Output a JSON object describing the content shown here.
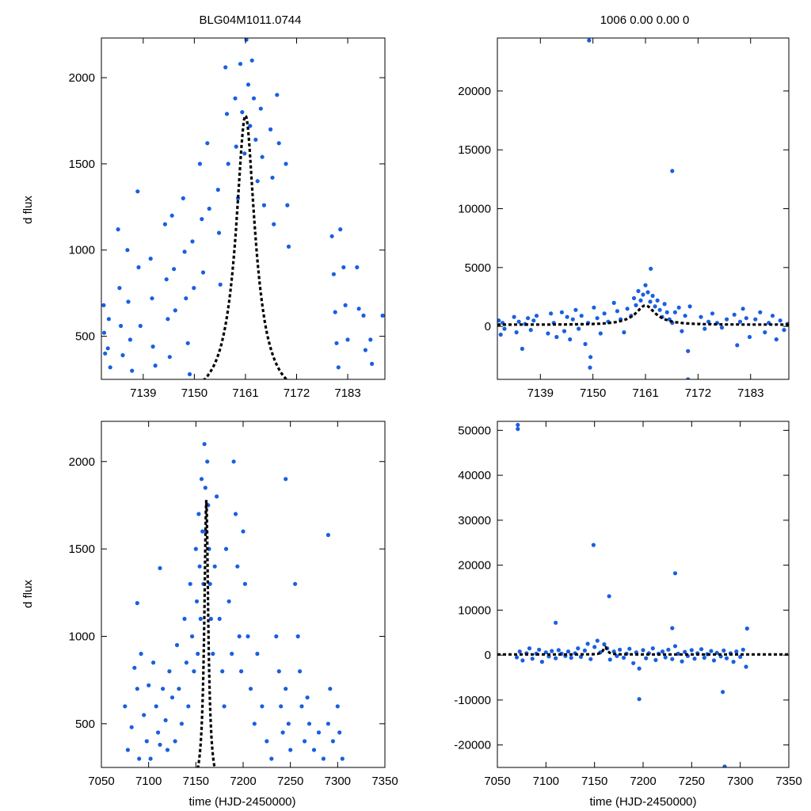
{
  "title_left": "BLG04M1011.0744",
  "title_right": "1006  0.00  0.00  0",
  "ylabel": "d flux",
  "xlabel": "time (HJD-2450000)",
  "colors": {
    "points": "#1a5fe0",
    "model": "#000000"
  },
  "chart_data": [
    {
      "type": "scatter",
      "panel": "top-left",
      "title": "BLG04M1011.0744",
      "ylabel": "d flux",
      "xlim": [
        7130,
        7191
      ],
      "ylim": [
        250,
        2230
      ],
      "xticks": [
        7139,
        7150,
        7161,
        7172,
        7183
      ],
      "yticks": [
        500,
        1000,
        1500,
        2000
      ],
      "model": {
        "t0": 7161,
        "peak": 1780,
        "baseline": 150,
        "tE": 6,
        "u0": 0.33
      },
      "series": [
        {
          "x": [
            7130.5,
            7130.6,
            7130.8,
            7131.4,
            7131.6,
            7131.9,
            7133.6,
            7133.9,
            7134.2,
            7134.6,
            7135.6,
            7135.8,
            7136.2,
            7136.6,
            7137.8,
            7138.0,
            7138.4,
            7140.6,
            7140.9,
            7141.1,
            7141.6,
            7143.7,
            7144.0,
            7144.3,
            7144.7,
            7145.2,
            7145.6,
            7145.9,
            7147.6,
            7147.9,
            7148.2,
            7148.6,
            7149.0,
            7149.6,
            7149.9,
            7151.2,
            7151.6,
            7151.9,
            7152.8,
            7153.2,
            7155.1,
            7155.3,
            7155.6,
            7156.7,
            7157.0,
            7157.3,
            7158.8,
            7159.0,
            7159.4,
            7159.9,
            7160.3,
            7160.8,
            7161.2,
            7161.6,
            7162.0,
            7162.4,
            7162.8,
            7163.2,
            7163.6,
            7164.3,
            7164.6,
            7165.0,
            7166.4,
            7166.8,
            7167.1,
            7167.8,
            7168.2,
            7169.7,
            7170.0,
            7170.3,
            7179.6,
            7180.0,
            7180.3,
            7180.6,
            7181.0,
            7181.4,
            7182.1,
            7182.5,
            7183.0,
            7185.0,
            7185.4,
            7186.4,
            7186.8,
            7187.9,
            7188.2,
            7190.5
          ],
          "y": [
            680,
            520,
            400,
            430,
            600,
            320,
            1120,
            780,
            560,
            390,
            1000,
            700,
            480,
            300,
            1340,
            900,
            560,
            950,
            720,
            440,
            330,
            1150,
            830,
            600,
            380,
            1200,
            890,
            650,
            1300,
            990,
            720,
            460,
            280,
            1050,
            780,
            1500,
            1180,
            870,
            1620,
            1240,
            1350,
            1100,
            800,
            2060,
            1790,
            1500,
            1880,
            1600,
            1300,
            2080,
            1800,
            1560,
            2220,
            1960,
            1720,
            2100,
            1880,
            1640,
            1400,
            1820,
            1540,
            1260,
            1700,
            1420,
            1150,
            1900,
            1620,
            1500,
            1260,
            1020,
            1080,
            860,
            640,
            460,
            320,
            1120,
            900,
            680,
            480,
            900,
            660,
            620,
            420,
            480,
            340,
            620
          ]
        }
      ]
    },
    {
      "type": "scatter",
      "panel": "top-right",
      "title": "1006  0.00  0.00  0",
      "xlim": [
        7130,
        7191
      ],
      "ylim": [
        -4500,
        24500
      ],
      "xticks": [
        7139,
        7150,
        7161,
        7172,
        7183
      ],
      "yticks": [
        0,
        5000,
        10000,
        15000,
        20000
      ],
      "model": {
        "t0": 7161,
        "peak": 1780,
        "baseline": 150,
        "tE": 6,
        "u0": 0.33
      },
      "series": [
        {
          "x": [
            7130.3,
            7130.7,
            7131.1,
            7131.5,
            7133.5,
            7134.0,
            7134.5,
            7135.2,
            7135.8,
            7136.4,
            7137.0,
            7137.6,
            7138.2,
            7140.6,
            7141.2,
            7141.8,
            7142.4,
            7143.5,
            7144.0,
            7144.6,
            7145.2,
            7145.8,
            7146.4,
            7147.0,
            7147.6,
            7148.4,
            7149.0,
            7149.5,
            7150.2,
            7150.9,
            7151.6,
            7152.4,
            7153.2,
            7154.4,
            7155.1,
            7155.8,
            7156.5,
            7157.2,
            7158.0,
            7158.6,
            7159.0,
            7159.5,
            7160.0,
            7160.5,
            7161.0,
            7161.5,
            7162.0,
            7162.5,
            7163.0,
            7163.5,
            7164.0,
            7164.5,
            7165.0,
            7165.5,
            7166.0,
            7166.6,
            7167.2,
            7168.0,
            7168.6,
            7169.3,
            7169.9,
            7170.3,
            7172.6,
            7173.4,
            7174.2,
            7175.0,
            7176.0,
            7177.0,
            7178.0,
            7179.6,
            7180.2,
            7180.8,
            7181.4,
            7182.1,
            7182.8,
            7184.0,
            7185.0,
            7186.0,
            7186.8,
            7187.6,
            7188.4,
            7189.2,
            7190.0,
            7190.7,
            7149.2,
            7166.6,
            7149.4,
            7162.1,
            7169.9
          ],
          "y": [
            500,
            -700,
            300,
            -200,
            800,
            -500,
            400,
            -1900,
            200,
            700,
            -300,
            500,
            900,
            -600,
            1100,
            300,
            -900,
            1200,
            -400,
            800,
            -1100,
            600,
            1400,
            -200,
            900,
            -1500,
            300,
            -2600,
            1600,
            700,
            -600,
            1100,
            400,
            2000,
            1300,
            600,
            -500,
            1500,
            900,
            2400,
            1800,
            3000,
            2200,
            2700,
            3500,
            2900,
            2100,
            2600,
            1700,
            2200,
            1400,
            800,
            1900,
            1200,
            600,
            300,
            1200,
            1600,
            -400,
            900,
            -2100,
            1700,
            800,
            -200,
            400,
            1100,
            300,
            -100,
            600,
            1000,
            -1600,
            400,
            1500,
            700,
            -900,
            600,
            1200,
            -500,
            300,
            900,
            -1100,
            500,
            -300,
            200,
            24300,
            13200,
            -3500,
            4900,
            -4500
          ]
        }
      ]
    },
    {
      "type": "scatter",
      "panel": "bottom-left",
      "ylabel": "d flux",
      "xlabel": "time (HJD-2450000)",
      "xlim": [
        7050,
        7350
      ],
      "ylim": [
        250,
        2230
      ],
      "xticks": [
        7050,
        7100,
        7150,
        7200,
        7250,
        7300,
        7350
      ],
      "yticks": [
        500,
        1000,
        1500,
        2000
      ],
      "model": {
        "t0": 7161,
        "peak": 1780,
        "baseline": 150,
        "tE": 6,
        "u0": 0.33
      },
      "series": [
        {
          "x": [
            7075,
            7078,
            7082,
            7085,
            7088,
            7090,
            7092,
            7095,
            7098,
            7100,
            7102,
            7105,
            7108,
            7110,
            7112,
            7115,
            7118,
            7120,
            7122,
            7125,
            7128,
            7130,
            7132,
            7135,
            7138,
            7140,
            7142,
            7144,
            7146,
            7148,
            7150,
            7151,
            7152,
            7153,
            7154,
            7155,
            7156,
            7157,
            7158,
            7159,
            7160,
            7161,
            7162,
            7163,
            7164,
            7165,
            7166,
            7168,
            7170,
            7172,
            7175,
            7178,
            7180,
            7182,
            7185,
            7188,
            7190,
            7192,
            7194,
            7196,
            7198,
            7200,
            7202,
            7205,
            7208,
            7212,
            7215,
            7220,
            7225,
            7230,
            7235,
            7238,
            7240,
            7242,
            7245,
            7248,
            7250,
            7255,
            7258,
            7260,
            7262,
            7265,
            7268,
            7270,
            7275,
            7280,
            7285,
            7290,
            7292,
            7295,
            7300,
            7302,
            7305,
            7088,
            7112,
            7245,
            7290
          ],
          "y": [
            600,
            350,
            480,
            820,
            700,
            300,
            900,
            550,
            400,
            720,
            300,
            850,
            600,
            450,
            380,
            700,
            520,
            350,
            800,
            650,
            400,
            950,
            700,
            500,
            1100,
            850,
            600,
            1300,
            1000,
            800,
            1500,
            1200,
            900,
            1700,
            1400,
            1100,
            1900,
            1600,
            1300,
            2100,
            1850,
            1600,
            2000,
            1750,
            1500,
            1300,
            1100,
            900,
            1400,
            1800,
            1100,
            800,
            600,
            1500,
            1200,
            900,
            2000,
            1700,
            1400,
            1000,
            800,
            1600,
            1300,
            1000,
            700,
            500,
            900,
            600,
            400,
            300,
            1000,
            800,
            600,
            450,
            700,
            500,
            350,
            1300,
            1000,
            800,
            600,
            400,
            650,
            500,
            350,
            450,
            300,
            500,
            700,
            400,
            600,
            450,
            300,
            1190,
            1390,
            1900,
            1580
          ]
        }
      ]
    },
    {
      "type": "scatter",
      "panel": "bottom-right",
      "xlabel": "time (HJD-2450000)",
      "xlim": [
        7050,
        7350
      ],
      "ylim": [
        -25000,
        52000
      ],
      "xticks": [
        7050,
        7100,
        7150,
        7200,
        7250,
        7300,
        7350
      ],
      "yticks": [
        -20000,
        -10000,
        0,
        10000,
        20000,
        30000,
        40000,
        50000
      ],
      "model": {
        "t0": 7161,
        "peak": 1780,
        "baseline": 150,
        "tE": 6,
        "u0": 0.33
      },
      "series": [
        {
          "x": [
            7070,
            7073,
            7076,
            7080,
            7083,
            7086,
            7090,
            7093,
            7096,
            7100,
            7103,
            7106,
            7110,
            7113,
            7116,
            7120,
            7123,
            7126,
            7130,
            7133,
            7136,
            7140,
            7143,
            7146,
            7150,
            7153,
            7156,
            7160,
            7163,
            7166,
            7170,
            7173,
            7176,
            7180,
            7183,
            7186,
            7190,
            7193,
            7196,
            7200,
            7203,
            7206,
            7210,
            7213,
            7216,
            7220,
            7223,
            7226,
            7230,
            7233,
            7236,
            7240,
            7243,
            7246,
            7250,
            7253,
            7256,
            7260,
            7263,
            7266,
            7270,
            7273,
            7276,
            7280,
            7283,
            7286,
            7290,
            7293,
            7296,
            7300,
            7303,
            7306,
            7071,
            7071,
            7149,
            7165,
            7110,
            7233,
            7230,
            7196,
            7282,
            7284,
            7307
          ],
          "y": [
            -500,
            800,
            -1200,
            400,
            1500,
            -800,
            300,
            1200,
            -1500,
            600,
            -300,
            900,
            -700,
            1100,
            300,
            -200,
            800,
            -600,
            400,
            1500,
            -400,
            1000,
            2500,
            -900,
            1800,
            3200,
            600,
            2400,
            1500,
            -1000,
            800,
            -200,
            1200,
            -600,
            300,
            1400,
            -1800,
            600,
            -3000,
            1100,
            -700,
            400,
            1500,
            -1100,
            300,
            800,
            -500,
            1200,
            -900,
            2000,
            300,
            -1400,
            700,
            -200,
            1100,
            -800,
            400,
            1300,
            -600,
            200,
            900,
            -1200,
            500,
            -300,
            1000,
            -700,
            400,
            -1500,
            800,
            -400,
            1200,
            -2600,
            51200,
            50300,
            24500,
            13100,
            7200,
            18200,
            6000,
            -9800,
            -8200,
            -24800,
            5900
          ]
        }
      ]
    }
  ]
}
